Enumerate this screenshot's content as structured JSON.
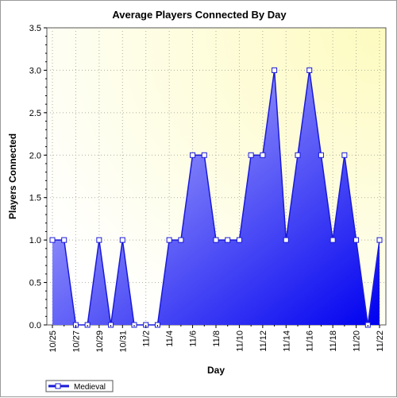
{
  "chart_data": {
    "type": "area",
    "title": "Average Players Connected By Day",
    "xlabel": "Day",
    "ylabel": "Players Connected",
    "x": [
      "10/25",
      "10/26",
      "10/27",
      "10/28",
      "10/29",
      "10/30",
      "10/31",
      "11/1",
      "11/2",
      "11/3",
      "11/4",
      "11/5",
      "11/6",
      "11/7",
      "11/8",
      "11/9",
      "11/10",
      "11/11",
      "11/12",
      "11/13",
      "11/14",
      "11/15",
      "11/16",
      "11/17",
      "11/18",
      "11/19",
      "11/20",
      "11/21",
      "11/22"
    ],
    "x_tick_labels": [
      "10/25",
      "10/27",
      "10/29",
      "10/31",
      "11/2",
      "11/4",
      "11/6",
      "11/8",
      "11/10",
      "11/12",
      "11/14",
      "11/16",
      "11/18",
      "11/20",
      "11/22"
    ],
    "ylim": [
      0,
      3.5
    ],
    "y_ticks": [
      "0.0",
      "0.5",
      "1.0",
      "1.5",
      "2.0",
      "2.5",
      "3.0",
      "3.5"
    ],
    "grid": true,
    "legend_position": "bottom-left",
    "series": [
      {
        "name": "Medieval",
        "values": [
          1,
          1,
          0,
          0,
          1,
          0,
          1,
          0,
          0,
          0,
          1,
          1,
          2,
          2,
          1,
          1,
          1,
          2,
          2,
          3,
          1,
          2,
          3,
          2,
          1,
          2,
          1,
          0,
          1
        ]
      }
    ],
    "colors": {
      "fill_light": "#c8c8ff",
      "fill_dark": "#0000f0",
      "line": "#1a1ad8",
      "plot_bg_top": "#fefccc",
      "plot_bg_bottom": "#ffffff"
    }
  }
}
